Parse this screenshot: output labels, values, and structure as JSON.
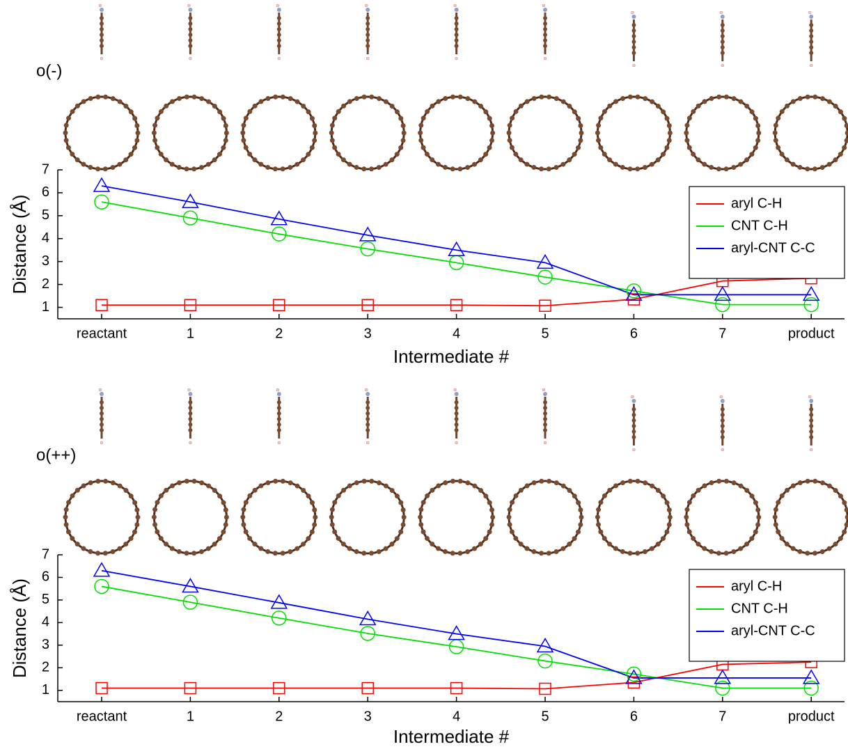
{
  "chart_data": [
    {
      "type": "line",
      "panel_label": "o(-)",
      "x_label": "Intermediate #",
      "y_label": "Distance (Å)",
      "categories": [
        "reactant",
        "1",
        "2",
        "3",
        "4",
        "5",
        "6",
        "7",
        "product"
      ],
      "series": [
        {
          "name": "aryl C-H",
          "color": "#ff0000",
          "marker": "square",
          "values": [
            1.1,
            1.1,
            1.1,
            1.1,
            1.1,
            1.07,
            1.35,
            2.15,
            2.27
          ]
        },
        {
          "name": "CNT C-H",
          "color": "#00e000",
          "marker": "circle",
          "values": [
            5.6,
            4.9,
            4.2,
            3.55,
            2.95,
            2.32,
            1.72,
            1.12,
            1.12
          ]
        },
        {
          "name": "aryl-CNT C-C",
          "color": "#0000ff",
          "marker": "triangle",
          "values": [
            6.3,
            5.6,
            4.85,
            4.15,
            3.5,
            2.95,
            1.55,
            1.55,
            1.55
          ]
        }
      ],
      "ylim": [
        0.5,
        7
      ],
      "yticks": [
        1,
        2,
        3,
        4,
        5,
        6,
        7
      ],
      "legend": "right"
    },
    {
      "type": "line",
      "panel_label": "o(++)",
      "x_label": "Intermediate #",
      "y_label": "Distance (Å)",
      "categories": [
        "reactant",
        "1",
        "2",
        "3",
        "4",
        "5",
        "6",
        "7",
        "product"
      ],
      "series": [
        {
          "name": "aryl C-H",
          "color": "#ff0000",
          "marker": "square",
          "values": [
            1.1,
            1.1,
            1.1,
            1.1,
            1.1,
            1.07,
            1.35,
            2.15,
            2.25
          ]
        },
        {
          "name": "CNT C-H",
          "color": "#00e000",
          "marker": "circle",
          "values": [
            5.6,
            4.9,
            4.2,
            3.52,
            2.93,
            2.3,
            1.72,
            1.1,
            1.1
          ]
        },
        {
          "name": "aryl-CNT C-C",
          "color": "#0000ff",
          "marker": "triangle",
          "values": [
            6.3,
            5.6,
            4.88,
            4.15,
            3.5,
            2.95,
            1.55,
            1.55,
            1.55
          ]
        }
      ],
      "ylim": [
        0.5,
        7
      ],
      "yticks": [
        1,
        2,
        3,
        4,
        5,
        6,
        7
      ],
      "legend": "right"
    }
  ]
}
